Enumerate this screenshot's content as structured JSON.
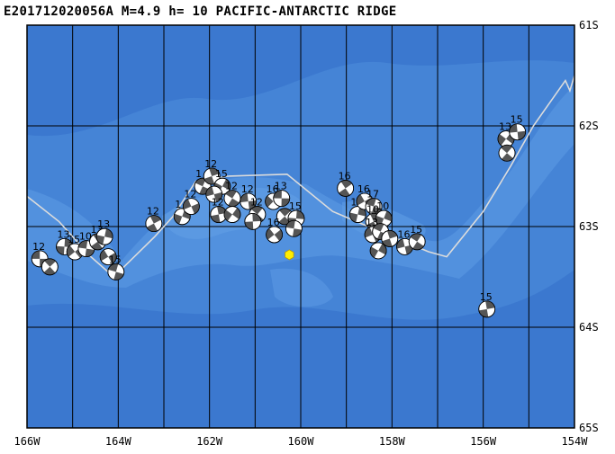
{
  "header": {
    "event_title": "E201712020056A M=4.9 h= 10 PACIFIC-ANTARCTIC RIDGE"
  },
  "map": {
    "lon_range": [
      -166,
      -154
    ],
    "lat_range": [
      -65,
      -61
    ],
    "lon_ticks": [
      {
        "value": -166,
        "label": "166W"
      },
      {
        "value": -164,
        "label": "164W"
      },
      {
        "value": -162,
        "label": "162W"
      },
      {
        "value": -160,
        "label": "160W"
      },
      {
        "value": -158,
        "label": "158W"
      },
      {
        "value": -156,
        "label": "156W"
      },
      {
        "value": -154,
        "label": "154W"
      }
    ],
    "lat_ticks": [
      {
        "value": -61,
        "label": "61S"
      },
      {
        "value": -62,
        "label": "62S"
      },
      {
        "value": -63,
        "label": "63S"
      },
      {
        "value": -64,
        "label": "64S"
      },
      {
        "value": -65,
        "label": "65S"
      }
    ],
    "grid_lon_step_deg": 1,
    "grid_lat_step_deg": 1,
    "colors": {
      "ocean_deep": "#3e7dd2",
      "ocean_mid": "#4a8ad9",
      "ridge_shallow": "#5696e0",
      "plate_boundary": "#dcdcdc",
      "grid": "#000000",
      "epicenter": "#ffee00"
    },
    "epicenter": {
      "lon": -160.25,
      "lat": -63.28,
      "symbol": "hexagon"
    },
    "plate_boundary": [
      [
        -166.0,
        -62.7
      ],
      [
        -165.3,
        -62.95
      ],
      [
        -164.6,
        -63.3
      ],
      [
        -164.1,
        -63.5
      ],
      [
        -163.2,
        -63.1
      ],
      [
        -162.8,
        -62.9
      ],
      [
        -162.3,
        -62.55
      ],
      [
        -161.6,
        -62.5
      ],
      [
        -160.3,
        -62.48
      ],
      [
        -159.3,
        -62.85
      ],
      [
        -158.0,
        -63.1
      ],
      [
        -157.2,
        -63.25
      ],
      [
        -156.8,
        -63.3
      ],
      [
        -156.0,
        -62.85
      ],
      [
        -155.4,
        -62.4
      ],
      [
        -154.9,
        -62.0
      ],
      [
        -154.2,
        -61.55
      ],
      [
        -154.1,
        -61.65
      ],
      [
        -154.0,
        -61.5
      ]
    ],
    "mechanisms": [
      {
        "lon": -165.72,
        "lat": -63.32,
        "label": "12"
      },
      {
        "lon": -165.5,
        "lat": -63.4,
        "label": ""
      },
      {
        "lon": -165.18,
        "lat": -63.2,
        "label": "13"
      },
      {
        "lon": -164.95,
        "lat": -63.25,
        "label": "15"
      },
      {
        "lon": -164.7,
        "lat": -63.22,
        "label": "10"
      },
      {
        "lon": -164.45,
        "lat": -63.15,
        "label": "13"
      },
      {
        "lon": -164.3,
        "lat": -63.1,
        "label": "13"
      },
      {
        "lon": -164.22,
        "lat": -63.3,
        "label": ""
      },
      {
        "lon": -164.05,
        "lat": -63.45,
        "label": "15"
      },
      {
        "lon": -163.22,
        "lat": -62.97,
        "label": "12"
      },
      {
        "lon": -162.6,
        "lat": -62.9,
        "label": "1"
      },
      {
        "lon": -162.4,
        "lat": -62.8,
        "label": "12"
      },
      {
        "lon": -162.15,
        "lat": -62.6,
        "label": "1"
      },
      {
        "lon": -161.95,
        "lat": -62.5,
        "label": "12"
      },
      {
        "lon": -161.72,
        "lat": -62.6,
        "label": "15"
      },
      {
        "lon": -161.9,
        "lat": -62.68,
        "label": ""
      },
      {
        "lon": -161.5,
        "lat": -62.72,
        "label": "12"
      },
      {
        "lon": -161.8,
        "lat": -62.88,
        "label": "12"
      },
      {
        "lon": -161.5,
        "lat": -62.88,
        "label": ""
      },
      {
        "lon": -161.15,
        "lat": -62.75,
        "label": "12"
      },
      {
        "lon": -160.95,
        "lat": -62.88,
        "label": "12"
      },
      {
        "lon": -161.05,
        "lat": -62.95,
        "label": ""
      },
      {
        "lon": -160.6,
        "lat": -62.75,
        "label": "16"
      },
      {
        "lon": -160.42,
        "lat": -62.72,
        "label": "13"
      },
      {
        "lon": -160.35,
        "lat": -62.9,
        "label": ""
      },
      {
        "lon": -160.1,
        "lat": -62.92,
        "label": "15"
      },
      {
        "lon": -160.58,
        "lat": -63.08,
        "label": "16"
      },
      {
        "lon": -160.15,
        "lat": -63.02,
        "label": ""
      },
      {
        "lon": -159.02,
        "lat": -62.62,
        "label": "16"
      },
      {
        "lon": -158.75,
        "lat": -62.88,
        "label": "16"
      },
      {
        "lon": -158.6,
        "lat": -62.75,
        "label": "16"
      },
      {
        "lon": -158.4,
        "lat": -62.8,
        "label": "17"
      },
      {
        "lon": -158.4,
        "lat": -62.95,
        "label": "10"
      },
      {
        "lon": -158.18,
        "lat": -62.92,
        "label": "10"
      },
      {
        "lon": -158.42,
        "lat": -63.08,
        "label": "13"
      },
      {
        "lon": -158.25,
        "lat": -63.05,
        "label": ""
      },
      {
        "lon": -158.05,
        "lat": -63.12,
        "label": ""
      },
      {
        "lon": -158.3,
        "lat": -63.24,
        "label": ""
      },
      {
        "lon": -157.72,
        "lat": -63.2,
        "label": "16"
      },
      {
        "lon": -157.45,
        "lat": -63.15,
        "label": "15"
      },
      {
        "lon": -155.92,
        "lat": -63.82,
        "label": "15"
      },
      {
        "lon": -155.5,
        "lat": -62.13,
        "label": "13"
      },
      {
        "lon": -155.25,
        "lat": -62.06,
        "label": "15"
      },
      {
        "lon": -155.48,
        "lat": -62.27,
        "label": ""
      }
    ]
  }
}
